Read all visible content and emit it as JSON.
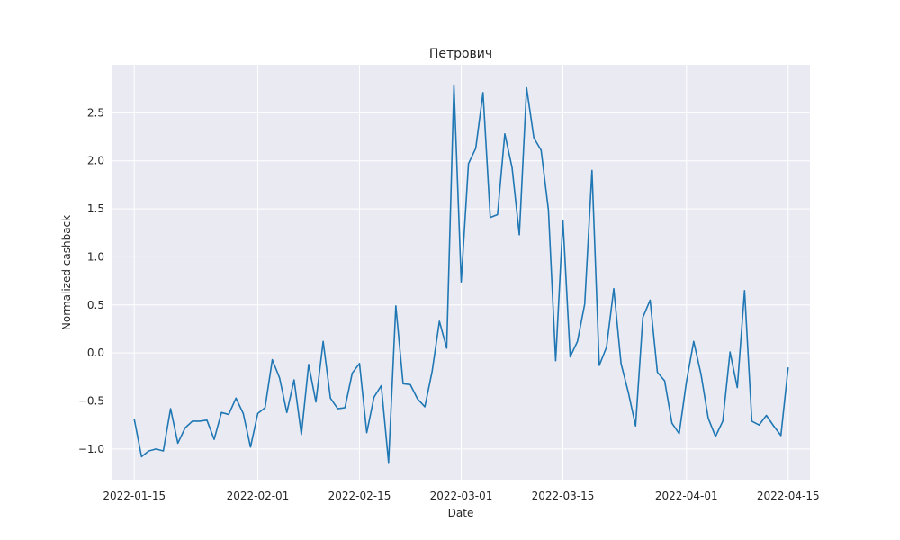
{
  "chart_data": {
    "type": "line",
    "title": "Петрович",
    "xlabel": "Date",
    "ylabel": "Normalized cashback",
    "xlim": [
      "2022-01-12",
      "2022-04-18"
    ],
    "ylim": [
      -1.32,
      3.0
    ],
    "grid": true,
    "x_ticks": [
      "2022-01-15",
      "2022-02-01",
      "2022-02-15",
      "2022-03-01",
      "2022-03-15",
      "2022-04-01",
      "2022-04-15"
    ],
    "y_ticks": [
      -1.0,
      -0.5,
      0.0,
      0.5,
      1.0,
      1.5,
      2.0,
      2.5
    ],
    "y_tick_labels": [
      "−1.0",
      "−0.5",
      "0.0",
      "0.5",
      "1.0",
      "1.5",
      "2.0",
      "2.5"
    ],
    "start_date": "2022-01-15",
    "series": [
      {
        "name": "",
        "color": "#1f77b4",
        "values": [
          -0.69,
          -1.08,
          -1.02,
          -1.0,
          -1.02,
          -0.58,
          -0.94,
          -0.78,
          -0.71,
          -0.71,
          -0.7,
          -0.9,
          -0.62,
          -0.64,
          -0.47,
          -0.63,
          -0.98,
          -0.63,
          -0.57,
          -0.07,
          -0.26,
          -0.62,
          -0.28,
          -0.85,
          -0.12,
          -0.51,
          0.12,
          -0.47,
          -0.58,
          -0.57,
          -0.21,
          -0.11,
          -0.83,
          -0.46,
          -0.34,
          -1.14,
          0.49,
          -0.32,
          -0.33,
          -0.48,
          -0.56,
          -0.19,
          0.33,
          0.05,
          2.79,
          0.74,
          1.97,
          2.13,
          2.71,
          1.41,
          1.44,
          2.28,
          1.93,
          1.23,
          2.76,
          2.24,
          2.11,
          1.49,
          -0.08,
          1.38,
          -0.04,
          0.12,
          0.51,
          1.9,
          -0.13,
          0.06,
          0.67,
          -0.11,
          -0.41,
          -0.76,
          0.37,
          0.55,
          -0.2,
          -0.29,
          -0.73,
          -0.84,
          -0.3,
          0.12,
          -0.22,
          -0.68,
          -0.87,
          -0.71,
          0.01,
          -0.36,
          0.65,
          -0.71,
          -0.75,
          -0.65,
          -0.76,
          -0.86,
          -0.15
        ]
      }
    ]
  }
}
